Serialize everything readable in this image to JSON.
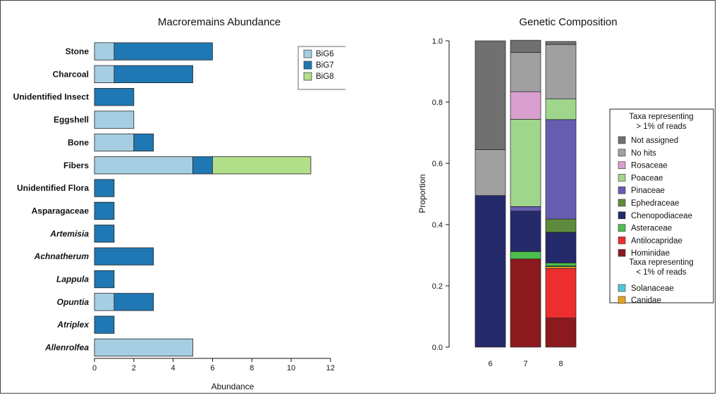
{
  "chart_data": [
    {
      "type": "bar",
      "orientation": "horizontal",
      "stacked": true,
      "title": "Macroremains Abundance",
      "xlabel": "Abundance",
      "xlim": [
        0,
        12
      ],
      "xticks": [
        "0",
        "2",
        "4",
        "6",
        "8",
        "10",
        "12"
      ],
      "legend_position": "top-right",
      "categories": [
        "Stone",
        "Charcoal",
        "Unidentified Insect",
        "Eggshell",
        "Bone",
        "Fibers",
        "Unidentified Flora",
        "Asparagaceae",
        "Artemisia",
        "Achnatherum",
        "Lappula",
        "Opuntia",
        "Atriplex",
        "Allenrolfea"
      ],
      "italic_categories": [
        "Artemisia",
        "Achnatherum",
        "Lappula",
        "Opuntia",
        "Atriplex",
        "Allenrolfea"
      ],
      "series": [
        {
          "name": "BiG6",
          "color": "#a6cee3",
          "values": [
            1,
            1,
            0,
            2,
            2,
            5,
            0,
            0,
            0,
            0,
            0,
            1,
            0,
            5
          ]
        },
        {
          "name": "BiG7",
          "color": "#1f78b4",
          "values": [
            5,
            4,
            2,
            0,
            1,
            1,
            1,
            1,
            1,
            3,
            1,
            2,
            1,
            0
          ]
        },
        {
          "name": "BiG8",
          "color": "#b2df8a",
          "values": [
            0,
            0,
            0,
            0,
            0,
            5,
            0,
            0,
            0,
            0,
            0,
            0,
            0,
            0
          ]
        }
      ]
    },
    {
      "type": "bar",
      "orientation": "vertical",
      "stacked": true,
      "title": "Genetic Composition",
      "ylabel": "Proportion",
      "ylim": [
        0,
        1
      ],
      "yticks": [
        "0.0",
        "0.2",
        "0.4",
        "0.6",
        "0.8",
        "1.0"
      ],
      "categories": [
        "6",
        "7",
        "8"
      ],
      "legend_position": "right",
      "legend_heading_1": [
        "Taxa representing",
        "> 1% of reads"
      ],
      "legend_heading_2": [
        "Taxa representing",
        "< 1% of reads"
      ],
      "legend_group_1": [
        "Not assigned",
        "No hits",
        "Rosaceae",
        "Poaceae",
        "Pinaceae",
        "Ephedraceae",
        "Chenopodiaceae",
        "Asteraceae",
        "Antilocapridae",
        "Hominidae"
      ],
      "legend_group_2": [
        "Solanaceae",
        "Canidae"
      ],
      "stack_order": [
        "Hominidae",
        "Antilocapridae",
        "Canidae",
        "Solanaceae",
        "Asteraceae",
        "Chenopodiaceae",
        "Ephedraceae",
        "Pinaceae",
        "Poaceae",
        "Rosaceae",
        "No hits",
        "Not assigned"
      ],
      "series": [
        {
          "name": "Not assigned",
          "color": "#707070",
          "values": [
            0.355,
            0.04,
            0.01
          ]
        },
        {
          "name": "No hits",
          "color": "#a0a0a0",
          "values": [
            0.15,
            0.128,
            0.178
          ]
        },
        {
          "name": "Rosaceae",
          "color": "#d99fcf",
          "values": [
            0,
            0.09,
            0
          ]
        },
        {
          "name": "Poaceae",
          "color": "#9fd68c",
          "values": [
            0,
            0.285,
            0.067
          ]
        },
        {
          "name": "Pinaceae",
          "color": "#675db0",
          "values": [
            0,
            0.015,
            0.325
          ]
        },
        {
          "name": "Ephedraceae",
          "color": "#5e8a3c",
          "values": [
            0,
            0,
            0.043
          ]
        },
        {
          "name": "Chenopodiaceae",
          "color": "#252a6b",
          "values": [
            0.495,
            0.132,
            0.1
          ]
        },
        {
          "name": "Asteraceae",
          "color": "#4cbf4f",
          "values": [
            0,
            0.024,
            0.01
          ]
        },
        {
          "name": "Antilocapridae",
          "color": "#ec2e2e",
          "values": [
            0,
            0,
            0.162
          ]
        },
        {
          "name": "Hominidae",
          "color": "#8b1a1f",
          "values": [
            0,
            0.288,
            0.095
          ]
        },
        {
          "name": "Solanaceae",
          "color": "#4fc7de",
          "values": [
            0,
            0,
            0.002
          ]
        },
        {
          "name": "Canidae",
          "color": "#e3a320",
          "values": [
            0,
            0,
            0.006
          ]
        }
      ]
    }
  ]
}
